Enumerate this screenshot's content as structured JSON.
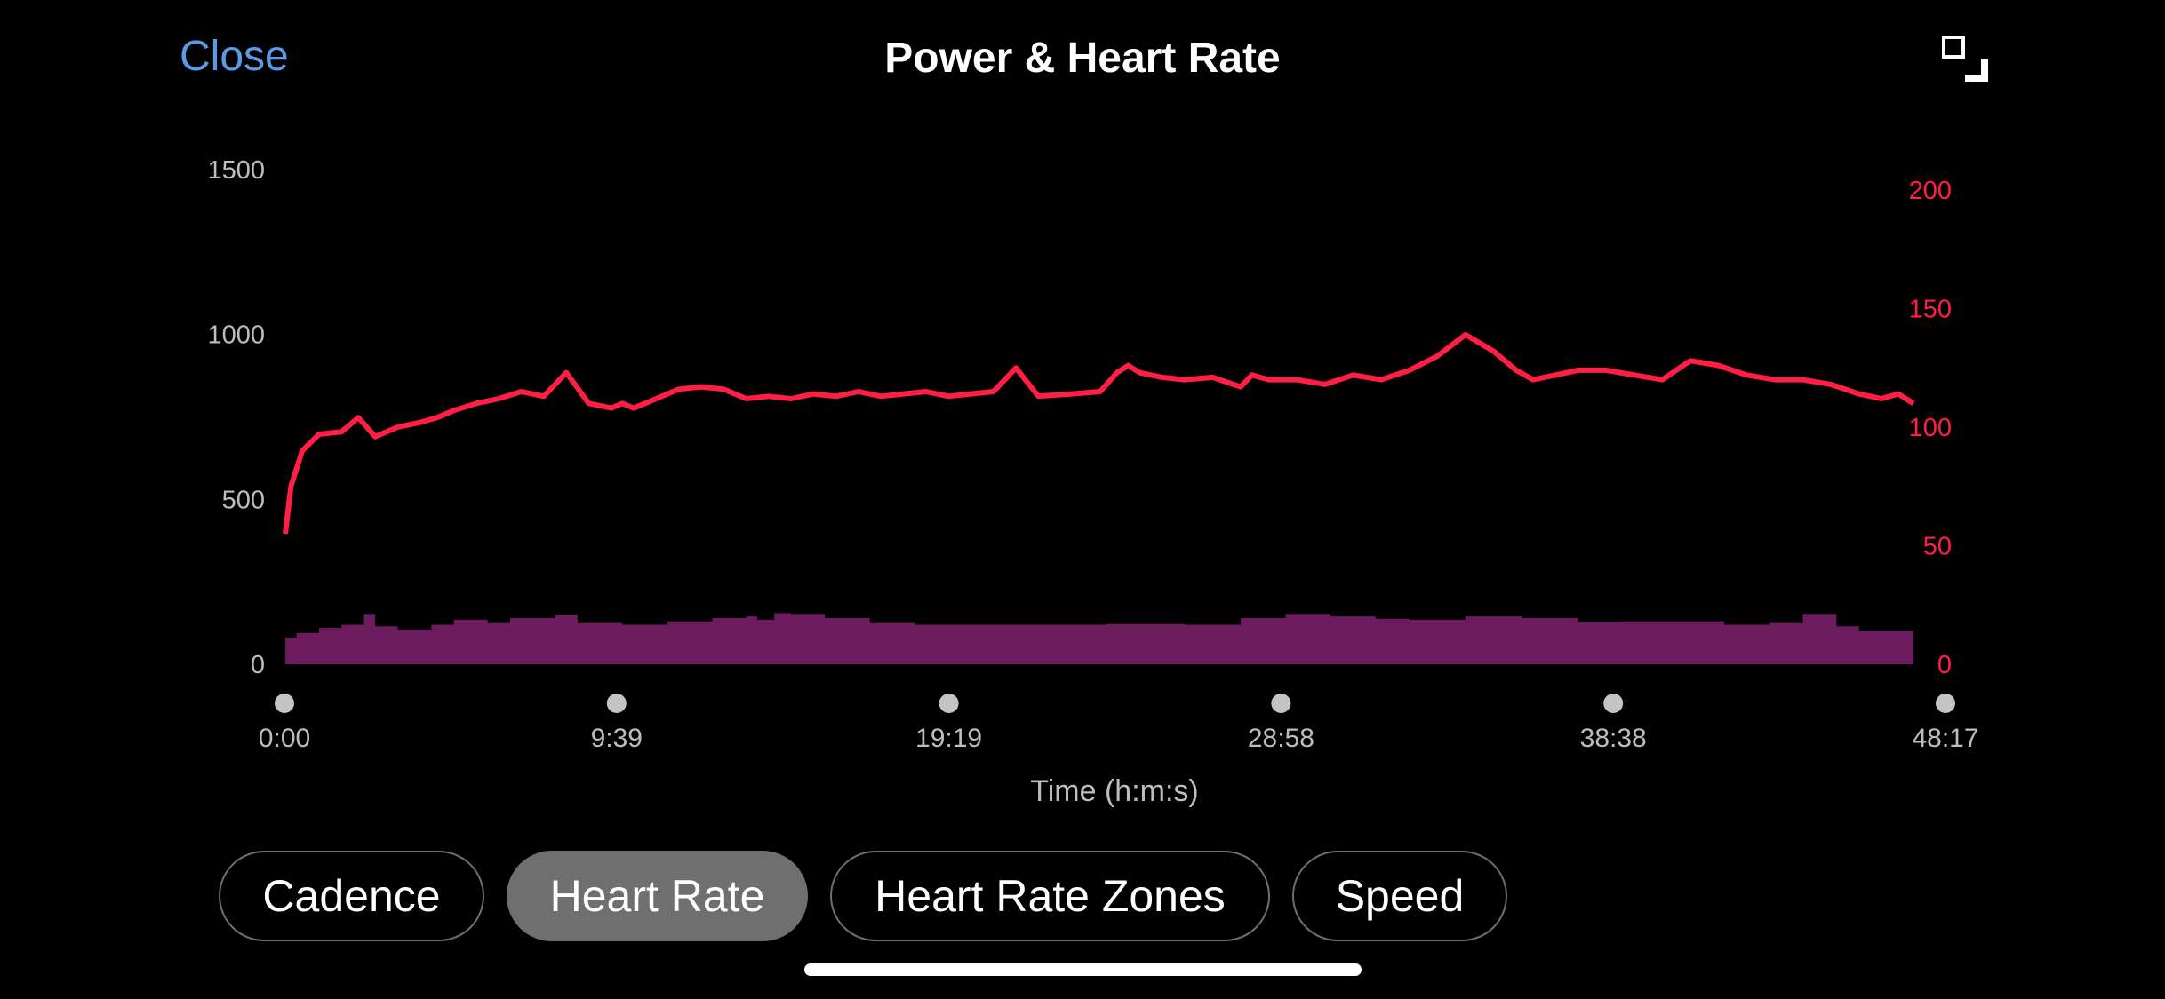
{
  "header": {
    "close_label": "Close",
    "title": "Power & Heart Rate",
    "expand_icon": "expand-icon"
  },
  "chart_data": {
    "type": "area",
    "xlabel": "Time (h:m:s)",
    "x_ticks": [
      "0:00",
      "9:39",
      "19:19",
      "28:58",
      "38:38",
      "48:17"
    ],
    "x_range_seconds": [
      0,
      2897
    ],
    "left_axis": {
      "ticks": [
        "1500",
        "1000",
        "500",
        "0"
      ],
      "ylim": [
        0,
        1500
      ]
    },
    "right_axis": {
      "ticks": [
        "200",
        "150",
        "100",
        "50",
        "0"
      ],
      "ylim": [
        0,
        200
      ],
      "color": "#ff1e44"
    },
    "series": [
      {
        "axis": "right",
        "style": "line",
        "color": "#ff1e44",
        "x_seconds": [
          0,
          10,
          30,
          60,
          100,
          130,
          160,
          200,
          240,
          270,
          300,
          340,
          380,
          420,
          460,
          500,
          540,
          580,
          600,
          620,
          640,
          660,
          700,
          740,
          780,
          820,
          860,
          900,
          940,
          980,
          1020,
          1060,
          1100,
          1140,
          1180,
          1220,
          1260,
          1300,
          1340,
          1400,
          1450,
          1480,
          1500,
          1520,
          1560,
          1600,
          1650,
          1700,
          1720,
          1750,
          1800,
          1850,
          1900,
          1950,
          2000,
          2050,
          2100,
          2150,
          2190,
          2220,
          2260,
          2300,
          2350,
          2400,
          2450,
          2500,
          2550,
          2600,
          2650,
          2700,
          2750,
          2800,
          2840,
          2870,
          2897
        ],
        "values": [
          55,
          75,
          90,
          97,
          98,
          104,
          96,
          100,
          102,
          104,
          107,
          110,
          112,
          115,
          113,
          123,
          110,
          108,
          110,
          108,
          110,
          112,
          116,
          117,
          116,
          112,
          113,
          112,
          114,
          113,
          115,
          113,
          114,
          115,
          113,
          114,
          115,
          125,
          113,
          114,
          115,
          123,
          126,
          123,
          121,
          120,
          121,
          117,
          122,
          120,
          120,
          118,
          122,
          120,
          124,
          130,
          139,
          132,
          124,
          120,
          122,
          124,
          124,
          122,
          120,
          128,
          126,
          122,
          120,
          120,
          118,
          114,
          112,
          114,
          110
        ]
      },
      {
        "axis": "left",
        "style": "area",
        "color": "#6c1b5e",
        "x_seconds": [
          0,
          20,
          60,
          100,
          140,
          160,
          200,
          260,
          300,
          360,
          400,
          480,
          520,
          600,
          680,
          760,
          820,
          840,
          870,
          900,
          960,
          1040,
          1120,
          1200,
          1280,
          1360,
          1460,
          1600,
          1660,
          1700,
          1780,
          1860,
          1940,
          2000,
          2100,
          2200,
          2300,
          2380,
          2500,
          2560,
          2640,
          2700,
          2760,
          2800,
          2897
        ],
        "values": [
          80,
          95,
          110,
          120,
          150,
          115,
          105,
          120,
          135,
          125,
          140,
          148,
          125,
          120,
          130,
          140,
          145,
          135,
          155,
          150,
          140,
          125,
          120,
          120,
          120,
          120,
          122,
          120,
          120,
          140,
          150,
          145,
          138,
          135,
          145,
          140,
          128,
          130,
          130,
          120,
          125,
          150,
          115,
          100,
          90
        ]
      }
    ]
  },
  "tabs": [
    {
      "label": "Cadence",
      "active": false
    },
    {
      "label": "Heart Rate",
      "active": true
    },
    {
      "label": "Heart Rate Zones",
      "active": false
    },
    {
      "label": "Speed",
      "active": false
    }
  ]
}
